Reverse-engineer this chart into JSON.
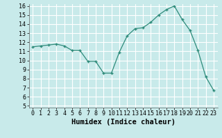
{
  "x": [
    0,
    1,
    2,
    3,
    4,
    5,
    6,
    7,
    8,
    9,
    10,
    11,
    12,
    13,
    14,
    15,
    16,
    17,
    18,
    19,
    20,
    21,
    22,
    23
  ],
  "y": [
    11.5,
    11.6,
    11.7,
    11.8,
    11.6,
    11.1,
    11.1,
    9.9,
    9.9,
    8.6,
    8.6,
    10.9,
    12.7,
    13.5,
    13.6,
    14.2,
    15.0,
    15.6,
    16.0,
    14.5,
    13.3,
    11.1,
    8.2,
    6.7
  ],
  "xlabel": "Humidex (Indice chaleur)",
  "ylim": [
    5,
    16
  ],
  "xlim": [
    -0.5,
    23.5
  ],
  "yticks": [
    5,
    6,
    7,
    8,
    9,
    10,
    11,
    12,
    13,
    14,
    15,
    16
  ],
  "xticks": [
    0,
    1,
    2,
    3,
    4,
    5,
    6,
    7,
    8,
    9,
    10,
    11,
    12,
    13,
    14,
    15,
    16,
    17,
    18,
    19,
    20,
    21,
    22,
    23
  ],
  "line_color": "#2e8b7a",
  "marker": "+",
  "bg_color": "#c8eaea",
  "grid_color": "#ffffff",
  "label_fontsize": 7.5,
  "tick_fontsize": 6
}
